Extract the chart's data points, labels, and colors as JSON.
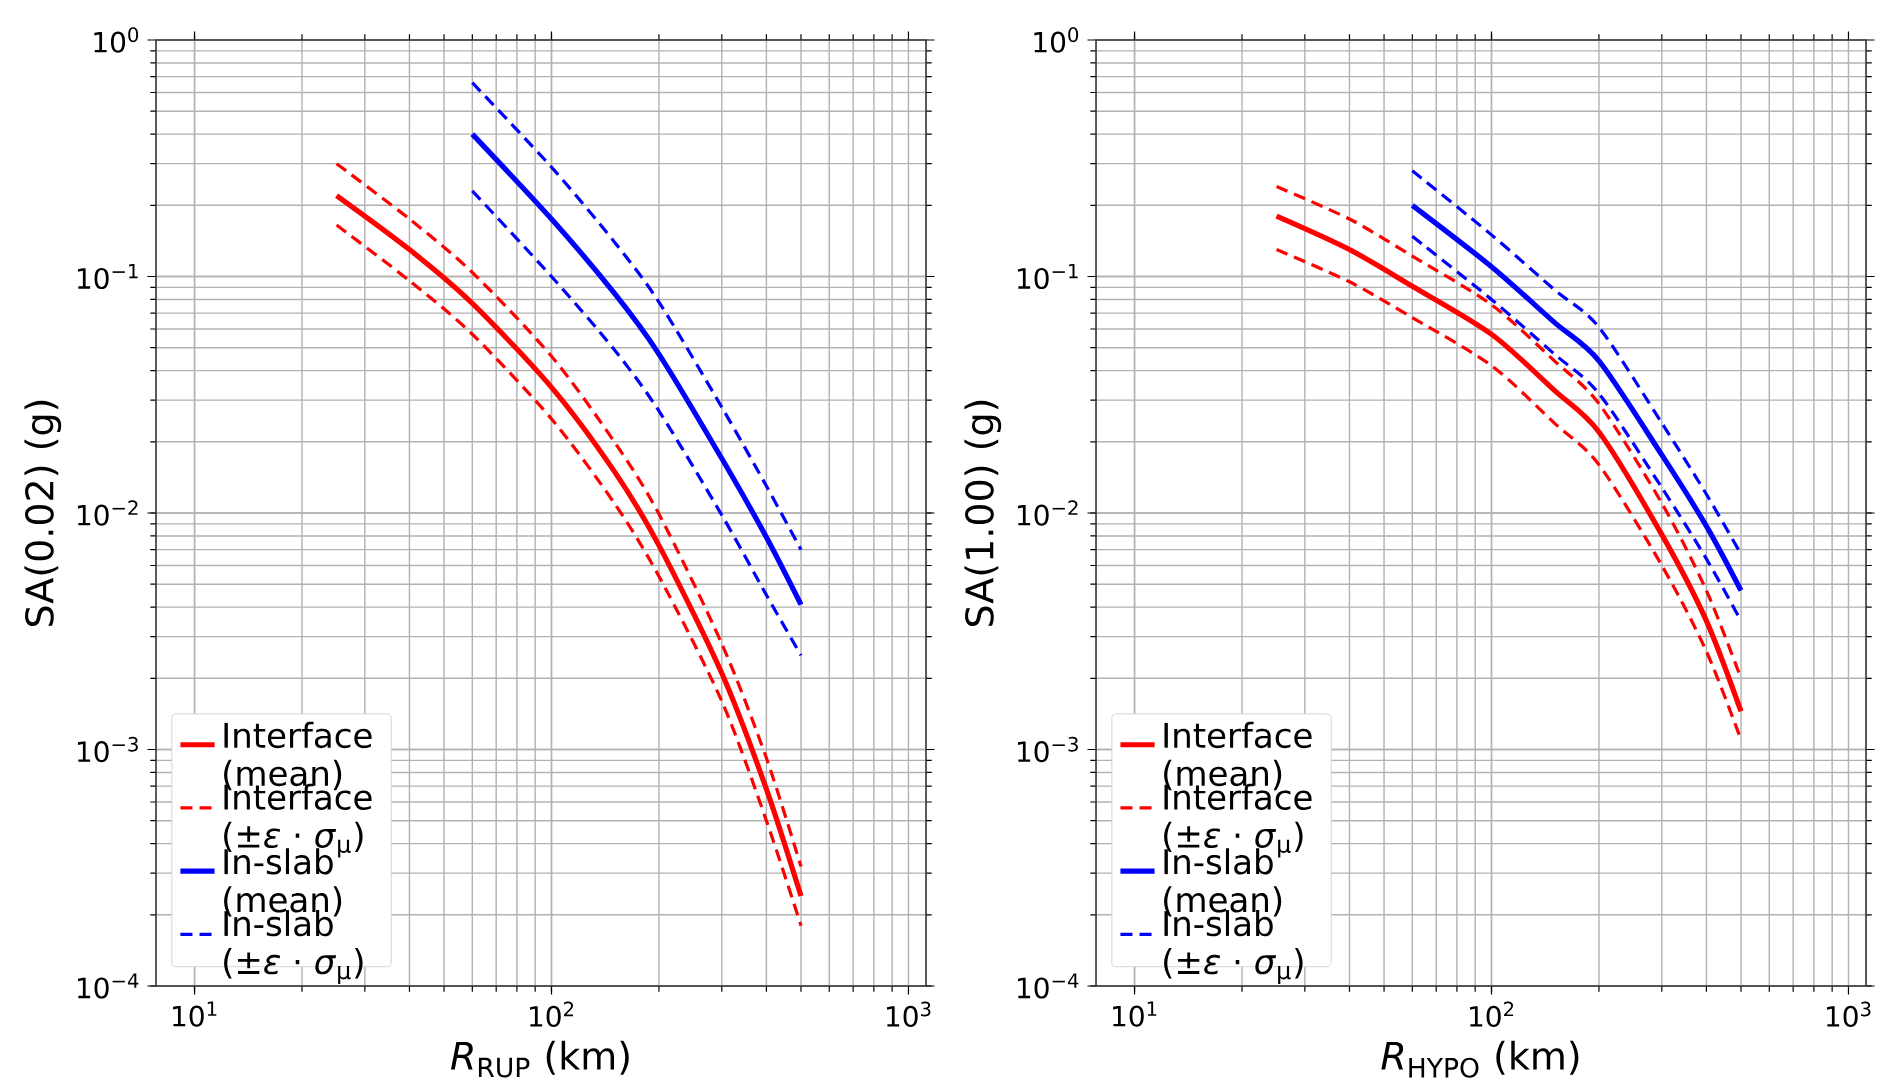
{
  "chart_data": [
    {
      "type": "line",
      "xlabel": "*R*$_{RUP}$ (km)",
      "ylabel": "SA(0.02) (g)",
      "log": "xy",
      "grid": true,
      "legend": "bottom left",
      "xlim": [
        7.8,
        1120
      ],
      "ylim": [
        0.0001,
        1
      ],
      "xticks": [
        {
          "value": 10,
          "label": "10$^{1}$"
        },
        {
          "value": 100,
          "label": "10$^{2}$"
        },
        {
          "value": 1000,
          "label": "10$^{3}$"
        }
      ],
      "yticks": [
        {
          "value": 0.0001,
          "label": "10$^{−4}$"
        },
        {
          "value": 0.001,
          "label": "10$^{−3}$"
        },
        {
          "value": 0.01,
          "label": "10$^{−2}$"
        },
        {
          "value": 0.1,
          "label": "10$^{−1}$"
        },
        {
          "value": 1,
          "label": "10$^{0}$"
        }
      ],
      "series": [
        {
          "name": "Interface (mean)",
          "color": "#ff0000",
          "line_style": "solid",
          "x": [
            25,
            40,
            60,
            100,
            150,
            200,
            300,
            400,
            500
          ],
          "values": [
            0.22,
            0.13,
            0.077,
            0.034,
            0.015,
            0.0073,
            0.0021,
            0.00068,
            0.00024
          ]
        },
        {
          "name": "Interface (±*ε* · *σ*$_{μ}$)",
          "color": "#ff0000",
          "line_style": "dashed",
          "x": [
            25,
            40,
            60,
            100,
            150,
            200,
            300,
            400,
            500
          ],
          "values": [
            0.3,
            0.175,
            0.104,
            0.046,
            0.02,
            0.0099,
            0.0028,
            0.00092,
            0.00032
          ]
        },
        {
          "color": "#ff0000",
          "line_style": "dashed",
          "x": [
            25,
            40,
            60,
            100,
            150,
            200,
            300,
            400,
            500
          ],
          "values": [
            0.165,
            0.096,
            0.057,
            0.025,
            0.011,
            0.0054,
            0.0016,
            0.0005,
            0.00018
          ]
        },
        {
          "name": "In-slab (mean)",
          "color": "#0000ff",
          "line_style": "solid",
          "x": [
            60,
            100,
            150,
            200,
            300,
            400,
            500
          ],
          "values": [
            0.4,
            0.175,
            0.085,
            0.047,
            0.017,
            0.0079,
            0.0041
          ]
        },
        {
          "name": "In-slab (±*ε* · *σ*$_{μ}$)",
          "color": "#0000ff",
          "line_style": "dashed",
          "x": [
            60,
            100,
            150,
            200,
            300,
            400,
            500
          ],
          "values": [
            0.66,
            0.29,
            0.14,
            0.078,
            0.028,
            0.013,
            0.007
          ]
        },
        {
          "color": "#0000ff",
          "line_style": "dashed",
          "x": [
            60,
            100,
            150,
            200,
            300,
            400,
            500
          ],
          "values": [
            0.23,
            0.1,
            0.049,
            0.027,
            0.0098,
            0.0045,
            0.0025
          ]
        }
      ]
    },
    {
      "type": "line",
      "xlabel": "*R*$_{HYPO}$ (km)",
      "ylabel": "SA(1.00) (g)",
      "log": "xy",
      "grid": true,
      "legend": "bottom left",
      "xlim": [
        7.8,
        1120
      ],
      "ylim": [
        0.0001,
        1
      ],
      "xticks": [
        {
          "value": 10,
          "label": "10$^{1}$"
        },
        {
          "value": 100,
          "label": "10$^{2}$"
        },
        {
          "value": 1000,
          "label": "10$^{3}$"
        }
      ],
      "yticks": [
        {
          "value": 0.0001,
          "label": "10$^{−4}$"
        },
        {
          "value": 0.001,
          "label": "10$^{−3}$"
        },
        {
          "value": 0.01,
          "label": "10$^{−2}$"
        },
        {
          "value": 0.1,
          "label": "10$^{−1}$"
        },
        {
          "value": 1,
          "label": "10$^{0}$"
        }
      ],
      "series": [
        {
          "name": "Interface (mean)",
          "color": "#ff0000",
          "line_style": "solid",
          "x": [
            25,
            40,
            60,
            100,
            150,
            200,
            300,
            400,
            500
          ],
          "values": [
            0.18,
            0.13,
            0.091,
            0.057,
            0.033,
            0.022,
            0.0081,
            0.0035,
            0.00145
          ]
        },
        {
          "name": "Interface (±*ε* · *σ*$_{μ}$)",
          "color": "#ff0000",
          "line_style": "dashed",
          "x": [
            25,
            40,
            60,
            100,
            150,
            200,
            300,
            400,
            500
          ],
          "values": [
            0.24,
            0.175,
            0.122,
            0.076,
            0.044,
            0.029,
            0.011,
            0.0047,
            0.002
          ]
        },
        {
          "color": "#ff0000",
          "line_style": "dashed",
          "x": [
            25,
            40,
            60,
            100,
            150,
            200,
            300,
            400,
            500
          ],
          "values": [
            0.13,
            0.095,
            0.067,
            0.042,
            0.024,
            0.016,
            0.006,
            0.0026,
            0.0011
          ]
        },
        {
          "name": "In-slab (mean)",
          "color": "#0000ff",
          "line_style": "solid",
          "x": [
            60,
            100,
            150,
            200,
            300,
            400,
            500
          ],
          "values": [
            0.2,
            0.11,
            0.064,
            0.044,
            0.0176,
            0.0088,
            0.0047
          ]
        },
        {
          "name": "In-slab (±*ε* · *σ*$_{μ}$)",
          "color": "#0000ff",
          "line_style": "dashed",
          "x": [
            60,
            100,
            150,
            200,
            300,
            400,
            500
          ],
          "values": [
            0.28,
            0.15,
            0.088,
            0.061,
            0.024,
            0.012,
            0.0067
          ]
        },
        {
          "color": "#0000ff",
          "line_style": "dashed",
          "x": [
            60,
            100,
            150,
            200,
            300,
            400,
            500
          ],
          "values": [
            0.148,
            0.08,
            0.047,
            0.032,
            0.0128,
            0.0064,
            0.0035
          ]
        }
      ]
    }
  ]
}
